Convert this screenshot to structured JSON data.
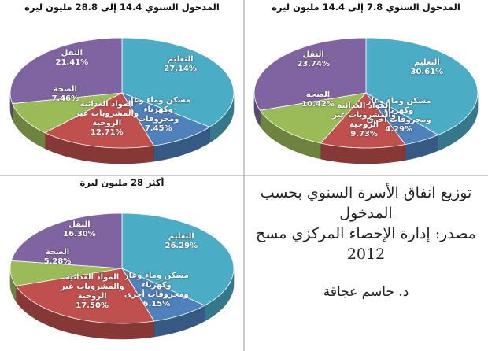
{
  "chart_data": [
    {
      "type": "pie",
      "title": "المدخول السنوي 7.8 إلى 14.4 مليون ليرة",
      "categories": [
        "التعليم",
        "مسكن وماء وغاز وكهرباء ومحروقات أخرى",
        "المواد الغذائية والمشروبات غير الروحية",
        "الصحة",
        "النقل"
      ],
      "values": [
        30.61,
        4.29,
        9.73,
        10.42,
        23.74
      ],
      "value_labels": [
        "30.61%",
        "4.29%",
        "9.73%",
        "10.42%",
        "23.74%"
      ],
      "colors": [
        "#4bacc6",
        "#4f81bd",
        "#c0504d",
        "#9bbb59",
        "#8064a2"
      ]
    },
    {
      "type": "pie",
      "title": "المدخول السنوي 14.4 إلى 28.8 مليون ليرة",
      "categories": [
        "التعليم",
        "مسكن وماء وغاز وكهرباء ومحروقات",
        "المواد الغذائية والمشروبات غير الروحية",
        "الصحة",
        "النقل"
      ],
      "values": [
        27.14,
        7.45,
        12.71,
        7.46,
        21.41
      ],
      "value_labels": [
        "27.14%",
        "7.45%",
        "12.71%",
        "7.46%",
        "21.41%"
      ],
      "colors": [
        "#4bacc6",
        "#4f81bd",
        "#c0504d",
        "#9bbb59",
        "#8064a2"
      ]
    },
    {
      "type": "pie",
      "title": "أكثر 28 مليون ليرة",
      "categories": [
        "التعليم",
        "مسكن وماء وغاز وكهرباء ومحروقات أخرى",
        "المواد الغذائية والمشروبات غير الروحية",
        "الصحة",
        "النقل"
      ],
      "values": [
        26.29,
        6.15,
        17.5,
        5.28,
        16.3
      ],
      "value_labels": [
        "26.29%",
        "6.15%",
        "17.50%",
        "5.28%",
        "16.30%"
      ],
      "colors": [
        "#4bacc6",
        "#4f81bd",
        "#c0504d",
        "#9bbb59",
        "#8064a2"
      ]
    }
  ],
  "notes": {
    "heading": "توزيع انفاق الأسرة السنوي بحسب المدخول",
    "source": "مصدر: إدارة الإحصاء المركزي مسح 2012",
    "author": "د. جاسم عجاقة"
  }
}
